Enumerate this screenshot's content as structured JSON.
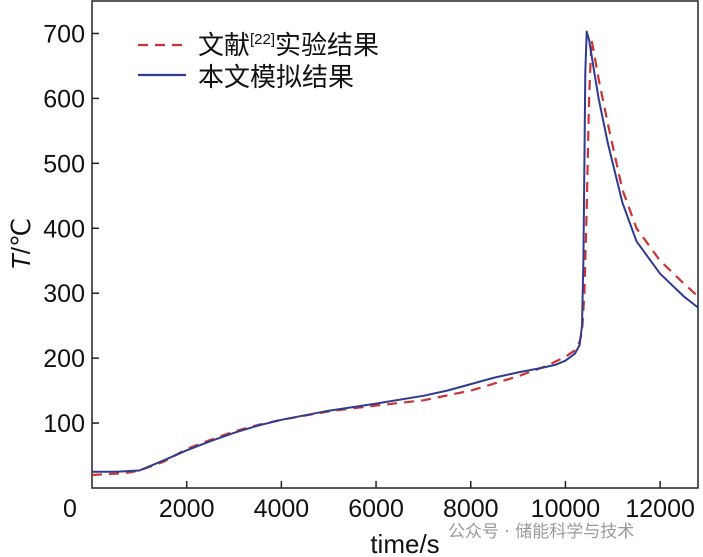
{
  "chart_data": {
    "type": "line",
    "xlabel": "time/s",
    "ylabel_italic": "T",
    "ylabel_unit": "/℃",
    "xlim": [
      0,
      12800
    ],
    "ylim": [
      0,
      750
    ],
    "x_ticks": [
      2000,
      4000,
      6000,
      8000,
      10000,
      12000
    ],
    "y_ticks": [
      100,
      200,
      300,
      400,
      500,
      600,
      700
    ],
    "origin_label": "0",
    "legend": {
      "placement": "top-left",
      "entries": [
        {
          "pre": "文献",
          "sup": "[22]",
          "post": "实验结果"
        },
        {
          "pre": "本文模拟结果",
          "sup": "",
          "post": ""
        }
      ]
    },
    "series": [
      {
        "name": "文献[22]实验结果",
        "color": "#cc3333",
        "dash": true,
        "x": [
          0,
          200,
          500,
          800,
          1000,
          1500,
          2000,
          2500,
          3000,
          3500,
          4000,
          5000,
          6000,
          7000,
          8000,
          9000,
          9600,
          10000,
          10200,
          10300,
          10350,
          10400,
          10450,
          10500,
          10550,
          10600,
          10700,
          10900,
          11200,
          11500,
          12000,
          12500,
          12800
        ],
        "y": [
          20,
          21,
          22,
          24,
          27,
          40,
          60,
          74,
          87,
          97,
          105,
          118,
          127,
          135,
          150,
          172,
          188,
          202,
          212,
          225,
          240,
          300,
          430,
          600,
          690,
          672,
          630,
          560,
          460,
          400,
          350,
          315,
          295
        ]
      },
      {
        "name": "本文模拟结果",
        "color": "#2e3b8f",
        "dash": false,
        "x": [
          0,
          500,
          1000,
          1500,
          2000,
          2500,
          3000,
          3500,
          4000,
          5000,
          6000,
          7000,
          7500,
          8000,
          8500,
          9000,
          9500,
          9800,
          10000,
          10200,
          10300,
          10350,
          10380,
          10400,
          10420,
          10450,
          10500,
          10600,
          10700,
          10900,
          11200,
          11500,
          12000,
          12500,
          12800
        ],
        "y": [
          25,
          25,
          27,
          42,
          58,
          72,
          85,
          96,
          105,
          119,
          130,
          142,
          150,
          160,
          170,
          178,
          185,
          190,
          196,
          207,
          220,
          250,
          350,
          500,
          640,
          703,
          690,
          645,
          600,
          530,
          440,
          380,
          330,
          295,
          278
        ]
      }
    ]
  },
  "watermark": "公众号 · 储能科学与技术"
}
